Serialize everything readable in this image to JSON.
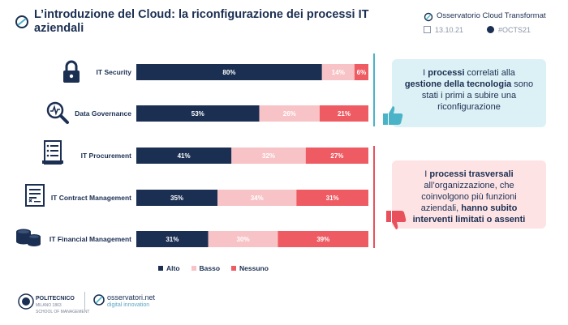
{
  "header": {
    "title": "L’introduzione del Cloud: la riconfigurazione dei processi IT aziendali",
    "observatory": "Osservatorio Cloud Transformat",
    "date": "13.10.21",
    "hashtag": "#OCTS21"
  },
  "colors": {
    "alto": "#1b2f52",
    "basso": "#f7c3c6",
    "nessuno": "#ee5b63",
    "accent_teal": "#4bb3c7",
    "accent_red": "#e8505b"
  },
  "chart_data": {
    "type": "bar",
    "orientation": "horizontal",
    "stacked": true,
    "percent": true,
    "categories": [
      "IT Security",
      "Data Governance",
      "IT Procurement",
      "IT Contract Management",
      "IT Financial Management"
    ],
    "series": [
      {
        "name": "Alto",
        "values": [
          80,
          53,
          41,
          35,
          31
        ]
      },
      {
        "name": "Basso",
        "values": [
          14,
          26,
          32,
          34,
          30
        ]
      },
      {
        "name": "Nessuno",
        "values": [
          6,
          21,
          27,
          31,
          39
        ]
      }
    ],
    "value_labels": [
      [
        "80%",
        "14%",
        "6%"
      ],
      [
        "53%",
        "26%",
        "21%"
      ],
      [
        "41%",
        "32%",
        "27%"
      ],
      [
        "35%",
        "34%",
        "31%"
      ],
      [
        "31%",
        "30%",
        "39%"
      ]
    ],
    "xlim": [
      0,
      100
    ],
    "grid": false,
    "legend_position": "bottom"
  },
  "category_icons": [
    "lock-icon",
    "magnifier-chart-icon",
    "receipt-icon",
    "contract-document-icon",
    "coins-icon"
  ],
  "callouts": [
    {
      "parts": [
        {
          "text": "I ",
          "bold": false
        },
        {
          "text": "processi",
          "bold": true
        },
        {
          "text": " correlati alla ",
          "bold": false
        },
        {
          "text": "gestione della tecnologia",
          "bold": true
        },
        {
          "text": " sono stati i primi a subire una riconfigurazione",
          "bold": false
        }
      ]
    },
    {
      "parts": [
        {
          "text": "I ",
          "bold": false
        },
        {
          "text": "processi trasversali",
          "bold": true
        },
        {
          "text": " all’organizzazione, che coinvolgono più funzioni aziendali, ",
          "bold": false
        },
        {
          "text": "hanno subito interventi limitati o assenti",
          "bold": true
        }
      ]
    }
  ],
  "footer": {
    "polimi_name": "POLITECNICO",
    "polimi_city": "MILANO 1863",
    "polimi_sub": "SCHOOL OF MANAGEMENT",
    "osservatori_name": "osservatori.net",
    "osservatori_sub": "digital innovation"
  }
}
